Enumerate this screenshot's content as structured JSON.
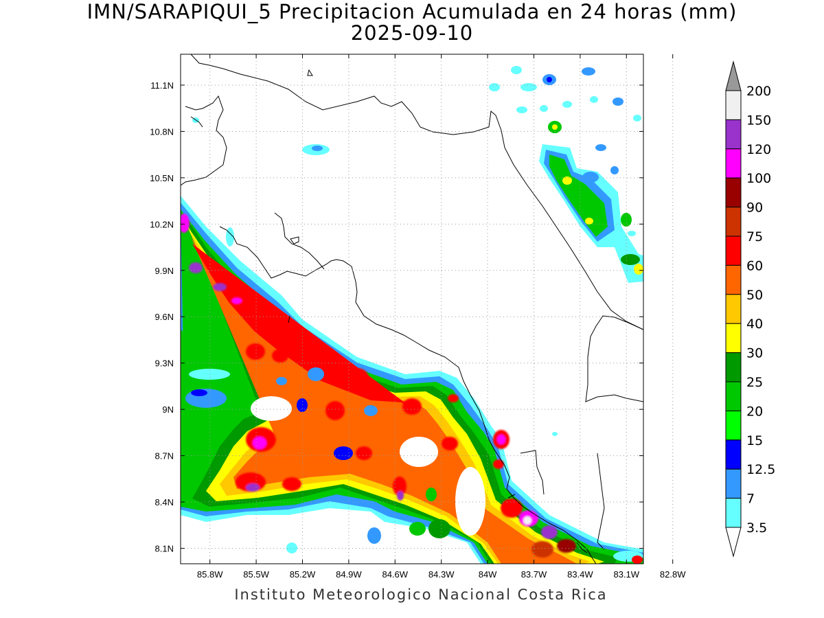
{
  "title": {
    "line1": "IMN/SARAPIQUI_5 Precipitacion Acumulada en 24 horas (mm)",
    "line2": "2025-09-10"
  },
  "footer": "Instituto Meteorologico Nacional Costa Rica",
  "map": {
    "lon_range": [
      -85.99,
      -82.99
    ],
    "lat_range": [
      8.0,
      11.3
    ],
    "x_ticks": [
      {
        "label": "85.8W",
        "lon": -85.8
      },
      {
        "label": "85.5W",
        "lon": -85.5
      },
      {
        "label": "85.2W",
        "lon": -85.2
      },
      {
        "label": "84.9W",
        "lon": -84.9
      },
      {
        "label": "84.6W",
        "lon": -84.6
      },
      {
        "label": "84.3W",
        "lon": -84.3
      },
      {
        "label": "84W",
        "lon": -84.0
      },
      {
        "label": "83.7W",
        "lon": -83.7
      },
      {
        "label": "83.4W",
        "lon": -83.4
      },
      {
        "label": "83.1W",
        "lon": -83.1
      },
      {
        "label": "82.8W",
        "lon": -82.8
      }
    ],
    "y_ticks": [
      {
        "label": "11.1N",
        "lat": 11.1
      },
      {
        "label": "10.8N",
        "lat": 10.8
      },
      {
        "label": "10.5N",
        "lat": 10.5
      },
      {
        "label": "10.2N",
        "lat": 10.2
      },
      {
        "label": "9.9N",
        "lat": 9.9
      },
      {
        "label": "9.6N",
        "lat": 9.6
      },
      {
        "label": "9.3N",
        "lat": 9.3
      },
      {
        "label": "9N",
        "lat": 9.0
      },
      {
        "label": "8.7N",
        "lat": 8.7
      },
      {
        "label": "8.4N",
        "lat": 8.4
      },
      {
        "label": "8.1N",
        "lat": 8.1
      }
    ],
    "grid": true,
    "gridline_style": "dotted"
  },
  "colorbar": {
    "levels": [
      "200",
      "150",
      "120",
      "100",
      "90",
      "75",
      "60",
      "50",
      "40",
      "30",
      "25",
      "20",
      "15",
      "12.5",
      "7",
      "3.5"
    ],
    "colors": [
      "#f0f0f0",
      "#9933cc",
      "#ff00ff",
      "#990000",
      "#cc3300",
      "#ff0000",
      "#ff6600",
      "#ffc800",
      "#ffff00",
      "#009900",
      "#00c800",
      "#00ff00",
      "#0000ff",
      "#3399ff",
      "#66ffff"
    ],
    "over_color": "#999999",
    "under_color": "#ffffff"
  }
}
